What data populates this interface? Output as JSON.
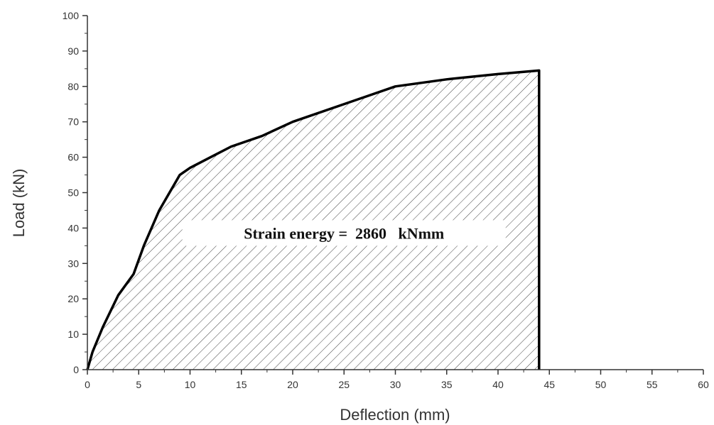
{
  "chart_data": {
    "type": "area",
    "xlabel": "Deflection (mm)",
    "ylabel": "Load (kN)",
    "xlim": [
      0,
      60
    ],
    "ylim": [
      0,
      100
    ],
    "x_ticks": [
      0,
      5,
      10,
      15,
      20,
      25,
      30,
      35,
      40,
      45,
      50,
      55,
      60
    ],
    "y_ticks": [
      0,
      10,
      20,
      30,
      40,
      50,
      60,
      70,
      80,
      90,
      100
    ],
    "grid": false,
    "fill_pattern": "diagonal-hatch",
    "series": [
      {
        "x": [
          0,
          0.5,
          1.5,
          3,
          4.5,
          5.5,
          7,
          8,
          9,
          10,
          12,
          14,
          17,
          20,
          25,
          30,
          35,
          40,
          44,
          44
        ],
        "y": [
          0,
          5,
          12,
          21,
          27,
          35,
          45,
          50,
          55,
          57,
          60,
          63,
          66,
          70,
          75,
          80,
          82,
          83.5,
          84.5,
          0
        ]
      }
    ],
    "annotation": {
      "text": "Strain energy =  2860   kNmm",
      "x": 25,
      "y": 37
    }
  }
}
